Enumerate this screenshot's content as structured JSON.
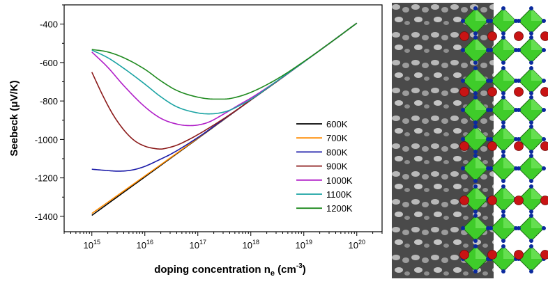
{
  "chart_data": {
    "type": "line",
    "xlabel": "doping concentration n",
    "xlabel_sub": "e",
    "xlabel_unit_open": " (cm",
    "xlabel_unit_sup": "-3",
    "xlabel_unit_close": ")",
    "ylabel": "Seebeck (μV/K)",
    "xscale": "log",
    "xlim": [
      300000000000000.0,
      3e+20
    ],
    "ylim": [
      -1480,
      -300
    ],
    "x_ticks": [
      1000000000000000.0,
      1e+16,
      1e+17,
      1e+18,
      1e+19,
      1e+20
    ],
    "x_tick_labels": [
      {
        "base": "10",
        "exp": "15"
      },
      {
        "base": "10",
        "exp": "16"
      },
      {
        "base": "10",
        "exp": "17"
      },
      {
        "base": "10",
        "exp": "18"
      },
      {
        "base": "10",
        "exp": "19"
      },
      {
        "base": "10",
        "exp": "20"
      }
    ],
    "y_ticks": [
      -1400,
      -1200,
      -1000,
      -800,
      -600,
      -400
    ],
    "y_tick_labels": [
      "-1400",
      "-1200",
      "-1000",
      "-800",
      "-600",
      "-400"
    ],
    "grid": false,
    "legend_position": "right",
    "series": [
      {
        "name": "600K",
        "color": "#000000",
        "x": [
          1000000000000000.0,
          3160000000000000.0,
          1e+16,
          3.16e+16,
          1e+17,
          3.16e+17,
          1e+18,
          3.16e+18,
          1e+19,
          3.16e+19,
          1e+20
        ],
        "y": [
          -1395,
          -1295,
          -1195,
          -1095,
          -995,
          -895,
          -795,
          -697,
          -597,
          -497,
          -395
        ]
      },
      {
        "name": "700K",
        "color": "#ff8c00",
        "x": [
          1000000000000000.0,
          3160000000000000.0,
          1e+16,
          3.16e+16,
          1e+17,
          3.16e+17,
          1e+18,
          3.16e+18,
          1e+19,
          3.16e+19,
          1e+20
        ],
        "y": [
          -1385,
          -1288,
          -1190,
          -1092,
          -993,
          -894,
          -795,
          -697,
          -597,
          -497,
          -395
        ]
      },
      {
        "name": "800K",
        "color": "#1a1aa8",
        "x": [
          1000000000000000.0,
          2000000000000000.0,
          3160000000000000.0,
          6000000000000000.0,
          1e+16,
          2e+16,
          3.16e+16,
          1e+17,
          3.16e+17,
          1e+18,
          3.16e+18,
          1e+19,
          3.16e+19,
          1e+20
        ],
        "y": [
          -1155,
          -1162,
          -1165,
          -1158,
          -1140,
          -1102,
          -1075,
          -990,
          -893,
          -795,
          -697,
          -597,
          -497,
          -395
        ]
      },
      {
        "name": "900K",
        "color": "#8b1a1a",
        "x": [
          1000000000000000.0,
          1600000000000000.0,
          2500000000000000.0,
          4000000000000000.0,
          6300000000000000.0,
          1e+16,
          1.6e+16,
          2e+16,
          2.5e+16,
          4e+16,
          6.3e+16,
          1e+17,
          3.16e+17,
          1e+18,
          3.16e+18,
          1e+19,
          3.16e+19,
          1e+20
        ],
        "y": [
          -650,
          -770,
          -870,
          -950,
          -1005,
          -1035,
          -1048,
          -1050,
          -1046,
          -1030,
          -1005,
          -975,
          -890,
          -795,
          -697,
          -597,
          -497,
          -395
        ]
      },
      {
        "name": "1000K",
        "color": "#b01ec8",
        "x": [
          1000000000000000.0,
          2000000000000000.0,
          4000000000000000.0,
          1e+16,
          2e+16,
          4e+16,
          7e+16,
          1e+17,
          1.6e+17,
          3.16e+17,
          6e+17,
          1e+18,
          3.16e+18,
          1e+19,
          3.16e+19,
          1e+20
        ],
        "y": [
          -545,
          -625,
          -720,
          -830,
          -890,
          -920,
          -928,
          -925,
          -910,
          -866,
          -820,
          -785,
          -695,
          -597,
          -497,
          -395
        ]
      },
      {
        "name": "1100K",
        "color": "#1aa3a3",
        "x": [
          1000000000000000.0,
          2000000000000000.0,
          4000000000000000.0,
          1e+16,
          2e+16,
          4e+16,
          1e+17,
          1.6e+17,
          2.5e+17,
          4e+17,
          6.3e+17,
          1e+18,
          3.16e+18,
          1e+19,
          3.16e+19,
          1e+20
        ],
        "y": [
          -535,
          -575,
          -630,
          -712,
          -778,
          -830,
          -862,
          -867,
          -863,
          -848,
          -822,
          -792,
          -695,
          -597,
          -497,
          -395
        ]
      },
      {
        "name": "1200K",
        "color": "#1f8a1f",
        "x": [
          1000000000000000.0,
          2000000000000000.0,
          4000000000000000.0,
          1e+16,
          2e+16,
          4e+16,
          1e+17,
          2e+17,
          3.16e+17,
          5e+17,
          1e+18,
          3.16e+18,
          1e+19,
          3.16e+19,
          1e+20
        ],
        "y": [
          -532,
          -545,
          -575,
          -635,
          -695,
          -745,
          -780,
          -790,
          -790,
          -782,
          -755,
          -685,
          -595,
          -497,
          -395
        ]
      }
    ]
  }
}
